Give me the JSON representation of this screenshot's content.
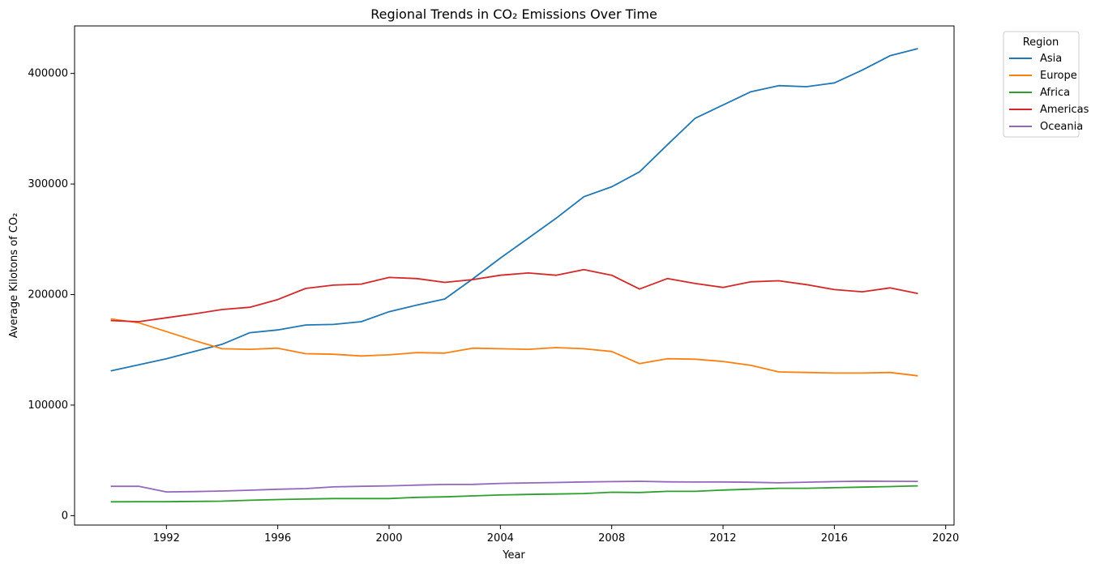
{
  "chart_data": {
    "type": "line",
    "title": "Regional Trends in CO₂ Emissions Over Time",
    "xlabel": "Year",
    "ylabel": "Average Kilotons of CO₂",
    "xlim": [
      1988.7,
      2020.3
    ],
    "ylim": [
      -8500,
      443000
    ],
    "xticks": [
      1992,
      1996,
      2000,
      2004,
      2008,
      2012,
      2016,
      2020
    ],
    "yticks": [
      0,
      100000,
      200000,
      300000,
      400000
    ],
    "grid": false,
    "legend": {
      "title": "Region",
      "placement": "outside-top-right"
    },
    "x": [
      1990,
      1991,
      1992,
      1993,
      1994,
      1995,
      1996,
      1997,
      1998,
      1999,
      2000,
      2001,
      2002,
      2003,
      2004,
      2005,
      2006,
      2007,
      2008,
      2009,
      2010,
      2011,
      2012,
      2013,
      2014,
      2015,
      2016,
      2017,
      2018,
      2019
    ],
    "series": [
      {
        "name": "Asia",
        "color": "#1f77b4",
        "values": [
          131000,
          136500,
          142000,
          148500,
          155000,
          165500,
          168000,
          172500,
          173000,
          175500,
          184500,
          190500,
          196000,
          214000,
          233000,
          251000,
          269000,
          288500,
          297500,
          311000,
          335500,
          359500,
          371500,
          383500,
          389000,
          388000,
          391500,
          403000,
          416000,
          422500
        ]
      },
      {
        "name": "Europe",
        "color": "#ff7f0e",
        "values": [
          178000,
          174500,
          166500,
          158500,
          151000,
          150500,
          151500,
          146500,
          146000,
          144500,
          145500,
          147500,
          147000,
          151500,
          151000,
          150500,
          152000,
          151000,
          148500,
          137500,
          142000,
          141500,
          139500,
          136000,
          130000,
          129500,
          129000,
          129000,
          129500,
          126500
        ]
      },
      {
        "name": "Africa",
        "color": "#2ca02c",
        "values": [
          12500,
          12600,
          12600,
          12900,
          13100,
          13900,
          14600,
          15000,
          15500,
          15500,
          15500,
          16600,
          17000,
          17900,
          18700,
          19200,
          19600,
          20000,
          21200,
          21000,
          22000,
          22000,
          23200,
          24000,
          24800,
          24800,
          25300,
          25800,
          26300,
          27000
        ]
      },
      {
        "name": "Americas",
        "color": "#d62728",
        "values": [
          176500,
          175500,
          179000,
          182500,
          186500,
          188500,
          195500,
          205500,
          208500,
          209500,
          215500,
          214500,
          211000,
          213500,
          217500,
          219500,
          217500,
          222500,
          217500,
          205000,
          214500,
          210000,
          206500,
          211500,
          212500,
          209000,
          204500,
          202500,
          206000,
          201000
        ]
      },
      {
        "name": "Oceania",
        "color": "#9467bd",
        "values": [
          26500,
          26600,
          21500,
          21800,
          22300,
          23000,
          23900,
          24500,
          26000,
          26500,
          27000,
          27600,
          28200,
          28300,
          29200,
          29600,
          30000,
          30500,
          30800,
          31100,
          30600,
          30400,
          30500,
          30200,
          29700,
          30300,
          30800,
          31200,
          31100,
          31000
        ]
      }
    ]
  }
}
